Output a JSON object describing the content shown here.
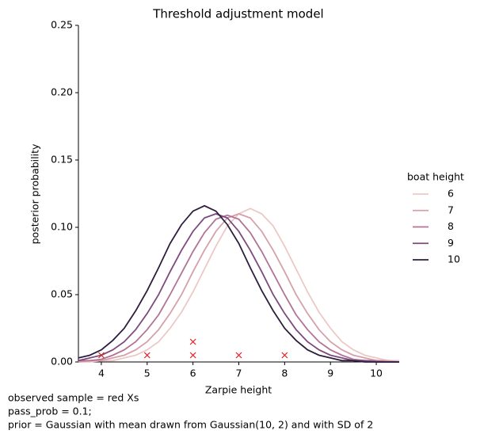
{
  "chart_data": {
    "type": "line",
    "title": "Threshold adjustment model",
    "xlabel": "Zarpie height",
    "ylabel": "posterior probability",
    "legend_title": "boat height",
    "legend_position": "right",
    "grid": false,
    "x": [
      3.5,
      3.75,
      4,
      4.25,
      4.5,
      4.75,
      5,
      5.25,
      5.5,
      5.75,
      6,
      6.25,
      6.5,
      6.75,
      7,
      7.25,
      7.5,
      7.75,
      8,
      8.25,
      8.5,
      8.75,
      9,
      9.25,
      9.5,
      9.75,
      10,
      10.25,
      10.5
    ],
    "series": [
      {
        "name": "6",
        "color": "#ecc9c6",
        "values": [
          0,
          0,
          0.001,
          0.001,
          0.003,
          0.005,
          0.009,
          0.015,
          0.025,
          0.037,
          0.052,
          0.069,
          0.086,
          0.101,
          0.11,
          0.114,
          0.11,
          0.101,
          0.086,
          0.069,
          0.052,
          0.037,
          0.025,
          0.015,
          0.009,
          0.005,
          0.003,
          0.001,
          0.001
        ]
      },
      {
        "name": "7",
        "color": "#d5a0aa",
        "values": [
          0,
          0.001,
          0.001,
          0.003,
          0.005,
          0.009,
          0.015,
          0.024,
          0.036,
          0.05,
          0.067,
          0.083,
          0.097,
          0.107,
          0.11,
          0.107,
          0.097,
          0.083,
          0.067,
          0.05,
          0.036,
          0.024,
          0.015,
          0.009,
          0.005,
          0.003,
          0.001,
          0.001,
          0
        ]
      },
      {
        "name": "8",
        "color": "#b27395",
        "values": [
          0.001,
          0.001,
          0.002,
          0.005,
          0.009,
          0.015,
          0.024,
          0.035,
          0.05,
          0.066,
          0.082,
          0.096,
          0.106,
          0.109,
          0.106,
          0.096,
          0.082,
          0.066,
          0.05,
          0.035,
          0.024,
          0.015,
          0.009,
          0.005,
          0.002,
          0.001,
          0.001,
          0,
          0
        ]
      },
      {
        "name": "9",
        "color": "#7d4a7d",
        "values": [
          0.001,
          0.003,
          0.005,
          0.009,
          0.015,
          0.024,
          0.036,
          0.05,
          0.067,
          0.083,
          0.097,
          0.107,
          0.11,
          0.107,
          0.097,
          0.083,
          0.067,
          0.05,
          0.036,
          0.024,
          0.015,
          0.009,
          0.005,
          0.003,
          0.001,
          0.001,
          0,
          0,
          0
        ]
      },
      {
        "name": "10",
        "color": "#2d1e3e",
        "values": [
          0.003,
          0.005,
          0.009,
          0.016,
          0.025,
          0.038,
          0.053,
          0.07,
          0.088,
          0.102,
          0.112,
          0.116,
          0.112,
          0.102,
          0.088,
          0.07,
          0.053,
          0.038,
          0.025,
          0.016,
          0.009,
          0.005,
          0.003,
          0.001,
          0.001,
          0,
          0,
          0,
          0
        ]
      }
    ],
    "points": {
      "color": "#e41a1c",
      "x": [
        4,
        5,
        6,
        6,
        7,
        8
      ],
      "y": [
        0.005,
        0.005,
        0.005,
        0.015,
        0.005,
        0.005
      ]
    },
    "xlim": [
      3.5,
      10.5
    ],
    "ylim": [
      0,
      0.25
    ],
    "xticks": [
      4,
      5,
      6,
      7,
      8,
      9,
      10
    ],
    "yticks": [
      {
        "value": 0,
        "label": "0.00"
      },
      0.05,
      {
        "value": 0.1,
        "label": "0.10"
      },
      0.15,
      {
        "value": 0.2,
        "label": "0.20"
      },
      0.25
    ],
    "footnote": [
      "observed sample = red Xs",
      "pass_prob = 0.1;",
      "prior = Gaussian with mean drawn from Gaussian(10, 2) and with SD of 2"
    ]
  }
}
